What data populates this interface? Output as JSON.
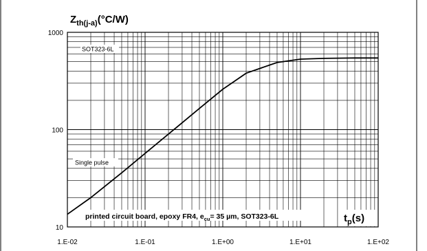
{
  "chart_data": {
    "type": "line",
    "title": "",
    "ylabel": {
      "main": "Z",
      "sub": "th(j-a)",
      "unit": "(°C/W)"
    },
    "xlabel": {
      "main": "t",
      "sub": "p",
      "unit": "(s)"
    },
    "x_scale": "log",
    "y_scale": "log",
    "xlim": [
      0.01,
      100
    ],
    "ylim": [
      10,
      1000
    ],
    "grid": true,
    "x_tick_labels": [
      "1.E-02",
      "1.E-01",
      "1.E+00",
      "1.E+01",
      "1.E+02"
    ],
    "x_ticks": [
      0.01,
      0.1,
      1,
      10,
      100
    ],
    "y_tick_labels": [
      "10",
      "100",
      "1000"
    ],
    "y_ticks": [
      10,
      100,
      1000
    ],
    "annotations": {
      "package": "SOT323-6L",
      "curve": "Single pulse",
      "condition_prefix": "printed circuit board, epoxy FR4, e",
      "condition_sub": "cu",
      "condition_suffix": "= 35 µm, SOT323-6L"
    },
    "series": [
      {
        "x": [
          0.01,
          0.02,
          0.05,
          0.1,
          0.2,
          0.5,
          1,
          2,
          5,
          10,
          20,
          50,
          100
        ],
        "y": [
          13.5,
          20,
          36,
          57,
          90,
          165,
          260,
          380,
          490,
          530,
          540,
          545,
          545
        ]
      }
    ]
  },
  "colors": {
    "line": "#000000",
    "grid": "#000000",
    "background": "#ffffff"
  }
}
